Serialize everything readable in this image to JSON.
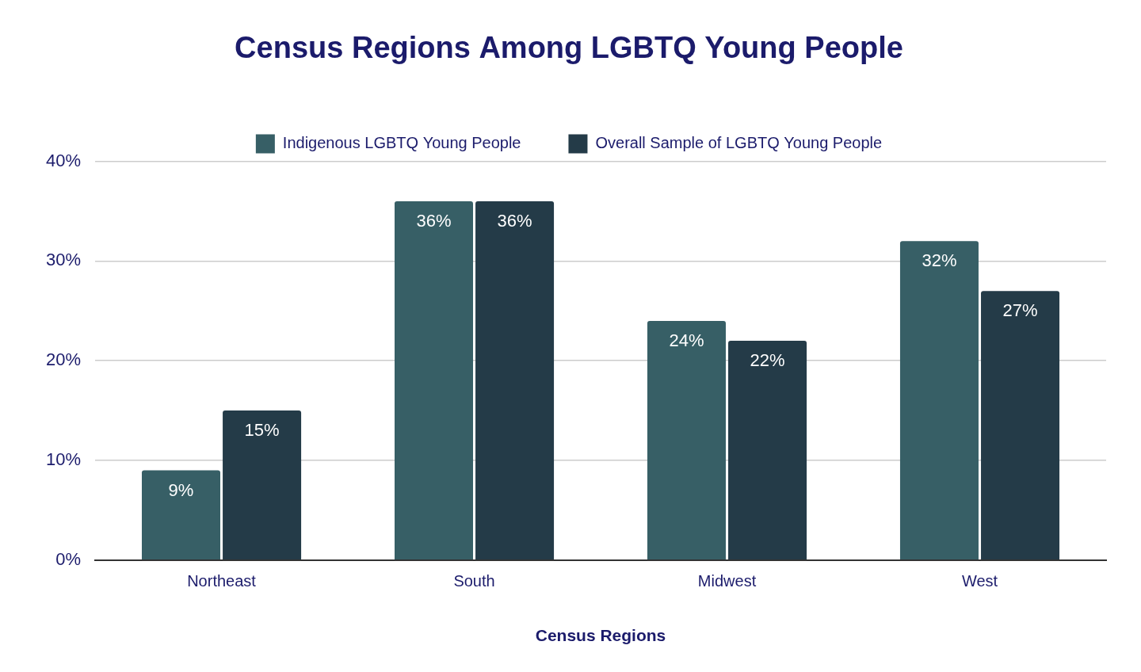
{
  "chart_data": {
    "type": "bar",
    "title": "Census Regions Among LGBTQ Young People",
    "x_label": "Census Regions",
    "categories": [
      "Northeast",
      "South",
      "Midwest",
      "West"
    ],
    "series": [
      {
        "name": "Indigenous LGBTQ Young People",
        "color": "#375f66",
        "values": [
          9,
          36,
          24,
          32
        ],
        "value_labels": [
          "9%",
          "36%",
          "24%",
          "32%"
        ]
      },
      {
        "name": "Overall Sample of LGBTQ Young People",
        "color": "#243b48",
        "values": [
          15,
          36,
          22,
          27
        ],
        "value_labels": [
          "15%",
          "36%",
          "22%",
          "27%"
        ]
      }
    ],
    "ylim": [
      0,
      40
    ],
    "yticks": [
      {
        "value": 0,
        "label": "0%"
      },
      {
        "value": 10,
        "label": "10%"
      },
      {
        "value": 20,
        "label": "20%"
      },
      {
        "value": 30,
        "label": "30%"
      },
      {
        "value": 40,
        "label": "40%"
      }
    ],
    "grid": true,
    "legend": "top",
    "data_labels": true
  }
}
